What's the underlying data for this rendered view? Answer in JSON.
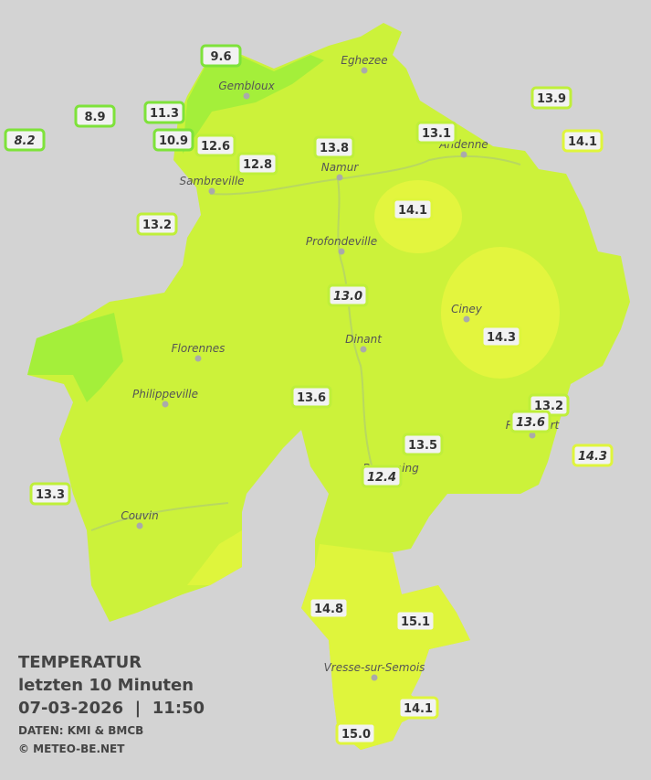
{
  "title": {
    "line1": "TEMPERATUR",
    "line2": "letzten 10 Minuten",
    "line3": "07-03-2026  |  11:50",
    "source": "DATEN: KMI & BMCB",
    "copyright": "© METEO-BE.NET"
  },
  "cities": [
    "Eghezee",
    "Gembloux",
    "Andenne",
    "Namur",
    "Sambreville",
    "Profondeville",
    "Ciney",
    "Dinant",
    "Florennes",
    "Philippeville",
    "Rochefort",
    "Beauraing",
    "Couvin",
    "Vresse-sur-Semois"
  ],
  "stations": [
    "8.2",
    "8.9",
    "11.3",
    "9.6",
    "10.9",
    "12.6",
    "12.8",
    "13.8",
    "13.1",
    "13.9",
    "14.1",
    "14.1",
    "13.2",
    "13.0",
    "14.3",
    "13.6",
    "13.2",
    "13.6",
    "13.5",
    "14.3",
    "12.4",
    "13.3",
    "14.8",
    "15.1",
    "14.1",
    "15.0"
  ]
}
